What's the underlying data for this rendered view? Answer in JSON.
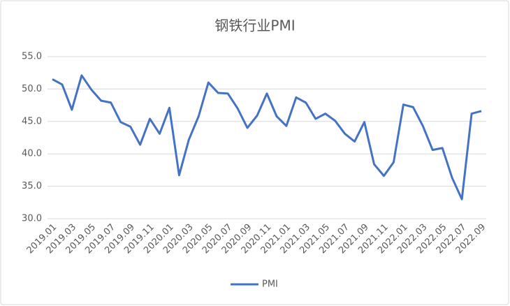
{
  "chart_data": {
    "type": "line",
    "title": "钢铁行业PMI",
    "categories": [
      "2019.01",
      null,
      "2019.03",
      null,
      "2019.05",
      null,
      "2019.07",
      null,
      "2019.09",
      null,
      "2019.11",
      null,
      "2020.01",
      null,
      "2020.03",
      null,
      "2020.05",
      null,
      "2020.07",
      null,
      "2020.09",
      null,
      "2020.11",
      null,
      "2021.01",
      null,
      "2021.03",
      null,
      "2021.05",
      null,
      "2021.07",
      null,
      "2021.09",
      null,
      "2021.11",
      null,
      "2022.01",
      null,
      "2022.03",
      null,
      "2022.05",
      null,
      "2022.07",
      null,
      "2022.09"
    ],
    "series": [
      {
        "name": "PMI",
        "color": "#4472c4",
        "values": [
          51.5,
          50.7,
          46.8,
          52.1,
          49.9,
          48.2,
          47.9,
          44.9,
          44.2,
          41.4,
          45.4,
          43.1,
          47.1,
          36.7,
          42.2,
          45.8,
          51.0,
          49.4,
          49.3,
          47.0,
          44.0,
          45.9,
          49.3,
          45.8,
          44.3,
          48.7,
          47.9,
          45.4,
          46.2,
          45.1,
          43.1,
          41.9,
          44.9,
          38.4,
          36.6,
          38.7,
          47.6,
          47.2,
          44.3,
          40.6,
          40.9,
          36.3,
          33.0,
          46.2,
          46.6
        ]
      }
    ],
    "ylim": [
      30,
      55
    ],
    "yticks": [
      {
        "value": 30,
        "label": "30.0"
      },
      {
        "value": 35,
        "label": "35.0"
      },
      {
        "value": 40,
        "label": "40.0"
      },
      {
        "value": 45,
        "label": "45.0"
      },
      {
        "value": 50,
        "label": "50.0"
      },
      {
        "value": 55,
        "label": "55.0"
      }
    ],
    "grid": true,
    "legend": "bottom"
  }
}
